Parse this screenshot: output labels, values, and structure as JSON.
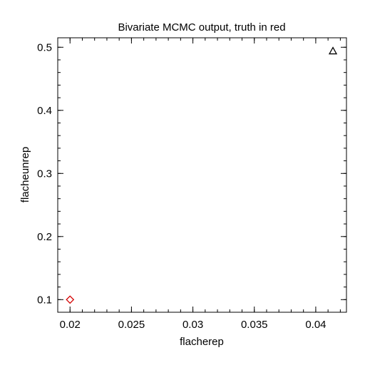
{
  "chart_data": {
    "type": "scatter",
    "title": "Bivariate MCMC output, truth in red",
    "xlabel": "flacherep",
    "ylabel": "flacheunrep",
    "xlim": [
      0.019,
      0.0425
    ],
    "ylim": [
      0.08,
      0.515
    ],
    "x_ticks": [
      {
        "value": 0.02,
        "label": "0.02"
      },
      {
        "value": 0.025,
        "label": "0.025"
      },
      {
        "value": 0.03,
        "label": "0.03"
      },
      {
        "value": 0.035,
        "label": "0.035"
      },
      {
        "value": 0.04,
        "label": "0.04"
      }
    ],
    "y_ticks": [
      {
        "value": 0.1,
        "label": "0.1"
      },
      {
        "value": 0.2,
        "label": "0.2"
      },
      {
        "value": 0.3,
        "label": "0.3"
      },
      {
        "value": 0.4,
        "label": "0.4"
      },
      {
        "value": 0.5,
        "label": "0.5"
      }
    ],
    "grid": false,
    "series": [
      {
        "marker": "triangle",
        "color": "#000000",
        "points": [
          {
            "x": 0.0414,
            "y": 0.494
          }
        ]
      },
      {
        "marker": "diamond",
        "color": "#d40000",
        "points": [
          {
            "x": 0.02,
            "y": 0.1
          }
        ]
      }
    ]
  }
}
